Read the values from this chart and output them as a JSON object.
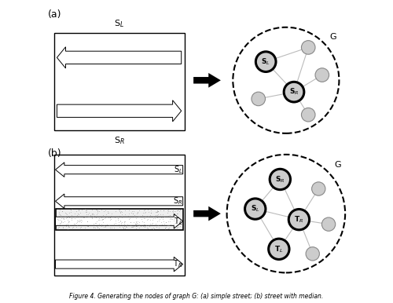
{
  "fig_width": 5.0,
  "fig_height": 3.86,
  "dpi": 100,
  "bg_color": "#ffffff",
  "panel_a_label": "(a)",
  "panel_b_label": "(b)",
  "lane_dash_color": "#aaaaaa",
  "median_fill": "#eeeeee",
  "node_fill": "#cccccc",
  "node_edge_thick": "#000000",
  "node_edge_thin": "#888888",
  "edge_line_color": "#bbbbbb",
  "dashed_circle_color": "#000000",
  "G_label": "G",
  "SL_label": "S$_L$",
  "SR_label": "S$_R$",
  "TL_label": "T$_L$",
  "TR_label": "T$_R$",
  "caption": "Figure 4. Generating the nodes of graph G: (a) simple street; (b) street with median."
}
